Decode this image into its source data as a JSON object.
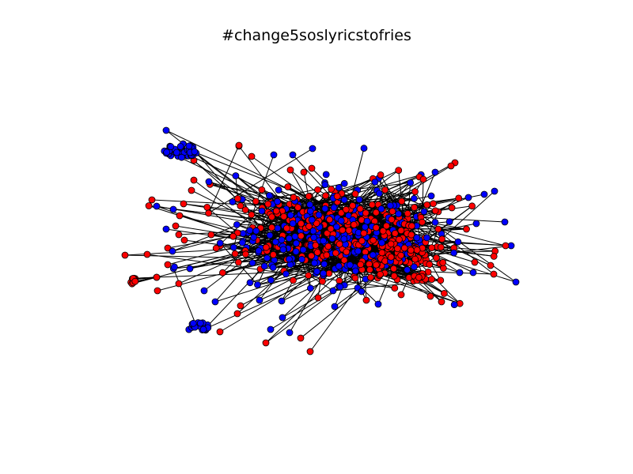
{
  "title": "#change5soslyricstofries",
  "node_colors": {
    "group_a": "#ff0000",
    "group_b": "#0000ff"
  },
  "node_outline_color": "#000000",
  "edge_color": "#000000",
  "background": "#ffffff"
}
